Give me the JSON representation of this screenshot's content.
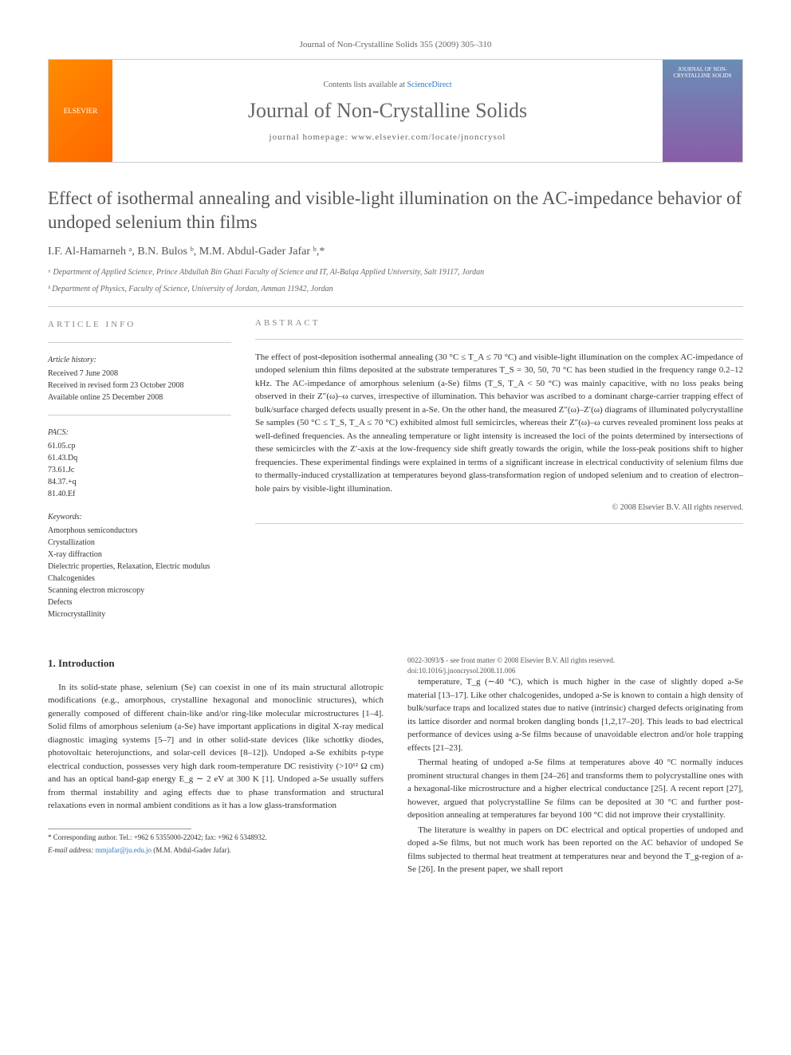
{
  "header_cite": "Journal of Non-Crystalline Solids 355 (2009) 305–310",
  "banner": {
    "publisher": "ELSEVIER",
    "contents_pre": "Contents lists available at ",
    "contents_link": "ScienceDirect",
    "journal_name": "Journal of Non-Crystalline Solids",
    "homepage": "journal homepage: www.elsevier.com/locate/jnoncrysol",
    "cover_text": "JOURNAL OF NON-CRYSTALLINE SOLIDS"
  },
  "title": "Effect of isothermal annealing and visible-light illumination on the AC-impedance behavior of undoped selenium thin films",
  "authors": "I.F. Al-Hamarneh ᵃ, B.N. Bulos ᵇ, M.M. Abdul-Gader Jafar ᵇ,*",
  "affiliations": {
    "a": "ᵃ Department of Applied Science, Prince Abdullah Bin Ghazi Faculty of Science and IT, Al-Balqa Applied University, Salt 19117, Jordan",
    "b": "ᵇ Department of Physics, Faculty of Science, University of Jordan, Amman 11942, Jordan"
  },
  "article_info": {
    "label": "ARTICLE INFO",
    "history_heading": "Article history:",
    "history": [
      "Received 7 June 2008",
      "Received in revised form 23 October 2008",
      "Available online 25 December 2008"
    ],
    "pacs_heading": "PACS:",
    "pacs": [
      "61.05.cp",
      "61.43.Dq",
      "73.61.Jc",
      "84.37.+q",
      "81.40.Ef"
    ],
    "keywords_heading": "Keywords:",
    "keywords": [
      "Amorphous semiconductors",
      "Crystallization",
      "X-ray diffraction",
      "Dielectric properties, Relaxation, Electric modulus",
      "Chalcogenides",
      "Scanning electron microscopy",
      "Defects",
      "Microcrystallinity"
    ]
  },
  "abstract": {
    "label": "ABSTRACT",
    "text": "The effect of post-deposition isothermal annealing (30 °C ≤ T_A ≤ 70 °C) and visible-light illumination on the complex AC-impedance of undoped selenium thin films deposited at the substrate temperatures T_S = 30, 50, 70 °C has been studied in the frequency range 0.2–12 kHz. The AC-impedance of amorphous selenium (a-Se) films (T_S, T_A < 50 °C) was mainly capacitive, with no loss peaks being observed in their Z″(ω)–ω curves, irrespective of illumination. This behavior was ascribed to a dominant charge-carrier trapping effect of bulk/surface charged defects usually present in a-Se. On the other hand, the measured Z″(ω)–Z′(ω) diagrams of illuminated polycrystalline Se samples (50 °C ≤ T_S, T_A ≤ 70 °C) exhibited almost full semicircles, whereas their Z″(ω)–ω curves revealed prominent loss peaks at well-defined frequencies. As the annealing temperature or light intensity is increased the loci of the points determined by intersections of these semicircles with the Z′-axis at the low-frequency side shift greatly towards the origin, while the loss-peak positions shift to higher frequencies. These experimental findings were explained in terms of a significant increase in electrical conductivity of selenium films due to thermally-induced crystallization at temperatures beyond glass-transformation region of undoped selenium and to creation of electron–hole pairs by visible-light illumination.",
    "copyright": "© 2008 Elsevier B.V. All rights reserved."
  },
  "intro": {
    "heading": "1. Introduction",
    "p1": "In its solid-state phase, selenium (Se) can coexist in one of its main structural allotropic modifications (e.g., amorphous, crystalline hexagonal and monoclinic structures), which generally composed of different chain-like and/or ring-like molecular microstructures [1–4]. Solid films of amorphous selenium (a-Se) have important applications in digital X-ray medical diagnostic imaging systems [5–7] and in other solid-state devices (like schottky diodes, photovoltaic heterojunctions, and solar-cell devices [8–12]). Undoped a-Se exhibits p-type electrical conduction, possesses very high dark room-temperature DC resistivity (>10¹² Ω cm) and has an optical band-gap energy E_g ∼ 2 eV at 300 K [1]. Undoped a-Se usually suffers from thermal instability and aging effects due to phase transformation and structural relaxations even in normal ambient conditions as it has a low glass-transformation",
    "p2": "temperature, T_g (∼40 °C), which is much higher in the case of slightly doped a-Se material [13–17]. Like other chalcogenides, undoped a-Se is known to contain a high density of bulk/surface traps and localized states due to native (intrinsic) charged defects originating from its lattice disorder and normal broken dangling bonds [1,2,17–20]. This leads to bad electrical performance of devices using a-Se films because of unavoidable electron and/or hole trapping effects [21–23].",
    "p3": "Thermal heating of undoped a-Se films at temperatures above 40 °C normally induces prominent structural changes in them [24–26] and transforms them to polycrystalline ones with a hexagonal-like microstructure and a higher electrical conductance [25]. A recent report [27], however, argued that polycrystalline Se films can be deposited at 30 °C and further post-deposition annealing at temperatures far beyond 100 °C did not improve their crystallinity.",
    "p4": "The literature is wealthy in papers on DC electrical and optical properties of undoped and doped a-Se films, but not much work has been reported on the AC behavior of undoped Se films subjected to thermal heat treatment at temperatures near and beyond the T_g-region of a-Se [26]. In the present paper, we shall report"
  },
  "footer": {
    "corr": "* Corresponding author. Tel.: +962 6 5355000-22042; fax: +962 6 5348932.",
    "email_label": "E-mail address:",
    "email": "mmjafar@ju.edu.jo",
    "email_owner": "(M.M. Abdul-Gader Jafar).",
    "issn": "0022-3093/$ - see front matter © 2008 Elsevier B.V. All rights reserved.",
    "doi": "doi:10.1016/j.jnoncrysol.2008.11.006"
  }
}
